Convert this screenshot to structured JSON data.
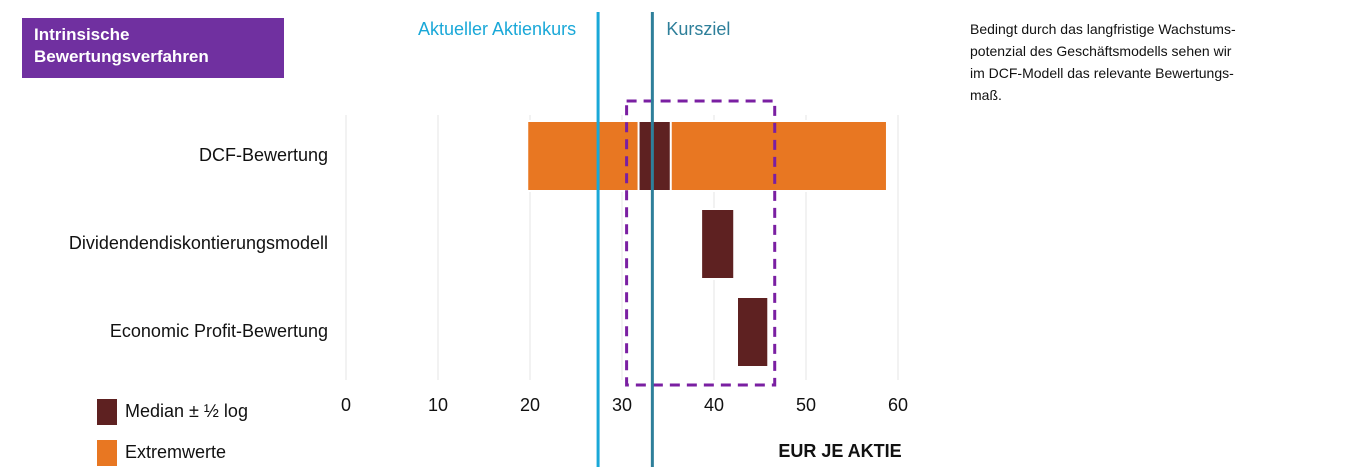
{
  "chart_data": {
    "type": "floating_bar",
    "title": "Intrinsische Bewertungsverfahren",
    "note_lines": [
      "Bedingt durch das langfristige Wachstums-",
      "potenzial des Geschäftsmodells sehen wir",
      "im DCF-Modell das relevante Bewertungs-",
      "maß."
    ],
    "xlabel": "EUR JE AKTIE",
    "categories": [
      "DCF-Bewertung",
      "Dividendendiskontierungsmodell",
      "Economic Profit-Bewertung"
    ],
    "series": [
      {
        "name": "Median ± ½ log",
        "color": "#5e2121",
        "low": [
          31.8,
          38.6,
          42.5
        ],
        "high": [
          35.3,
          42.2,
          45.9
        ]
      },
      {
        "name": "Extremwerte",
        "color": "#e87722",
        "low": [
          19.7,
          null,
          null
        ],
        "high": [
          58.8,
          null,
          null
        ]
      }
    ],
    "reference_lines": [
      {
        "label": "Aktueller Aktienkurs",
        "value": 27.4,
        "color": "#1aa8d8"
      },
      {
        "label": "Kursziel",
        "value": 33.3,
        "color": "#2e7f9a"
      }
    ],
    "highlight_range": [
      30.5,
      46.6
    ],
    "highlight_color": "#7a1fa2",
    "xlim": [
      0,
      60
    ],
    "xticks": [
      0,
      10,
      20,
      30,
      40,
      50,
      60
    ],
    "grid": true
  }
}
